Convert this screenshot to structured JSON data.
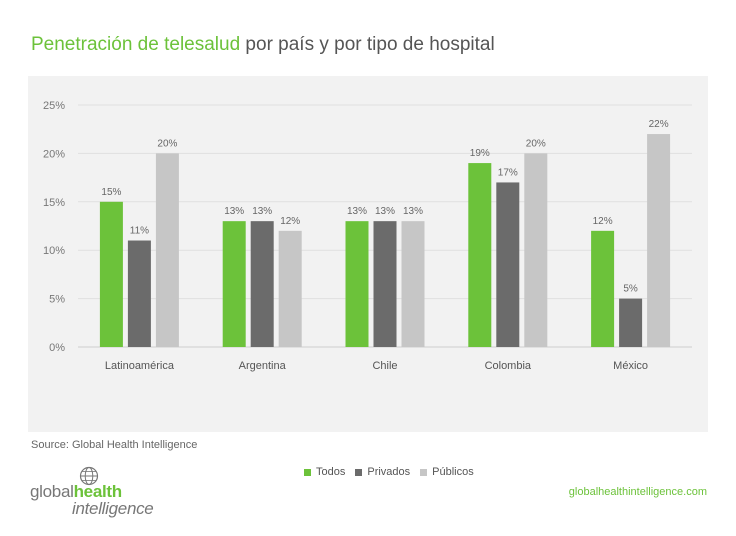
{
  "title": {
    "highlight": "Penetración de telesalud",
    "rest": " por país y por tipo de hospital"
  },
  "chart_data": {
    "type": "bar",
    "title": "Penetración de telesalud por país y por tipo de hospital",
    "categories": [
      "Latinoamérica",
      "Argentina",
      "Chile",
      "Colombia",
      "México"
    ],
    "series": [
      {
        "name": "Todos",
        "values": [
          15,
          13,
          13,
          19,
          12
        ],
        "color": "#6cc23a"
      },
      {
        "name": "Privados",
        "values": [
          11,
          13,
          13,
          17,
          5
        ],
        "color": "#6b6b6b"
      },
      {
        "name": "Públicos",
        "values": [
          20,
          12,
          13,
          20,
          22
        ],
        "color": "#c6c6c6"
      }
    ],
    "data_labels": [
      [
        "15%",
        "11%",
        "20%"
      ],
      [
        "13%",
        "13%",
        "12%"
      ],
      [
        "13%",
        "13%",
        "13%"
      ],
      [
        "19%",
        "17%",
        "20%"
      ],
      [
        "12%",
        "5%",
        "22%"
      ]
    ],
    "yticks": [
      "0%",
      "5%",
      "10%",
      "15%",
      "20%",
      "25%"
    ],
    "ylim": [
      0,
      25
    ],
    "grid": true,
    "legend_position": "bottom"
  },
  "source": "Source: Global Health Intelligence",
  "logo": {
    "part1": "global",
    "part2": "health",
    "part3": "intelligence"
  },
  "website": "globalhealthintelligence.com"
}
